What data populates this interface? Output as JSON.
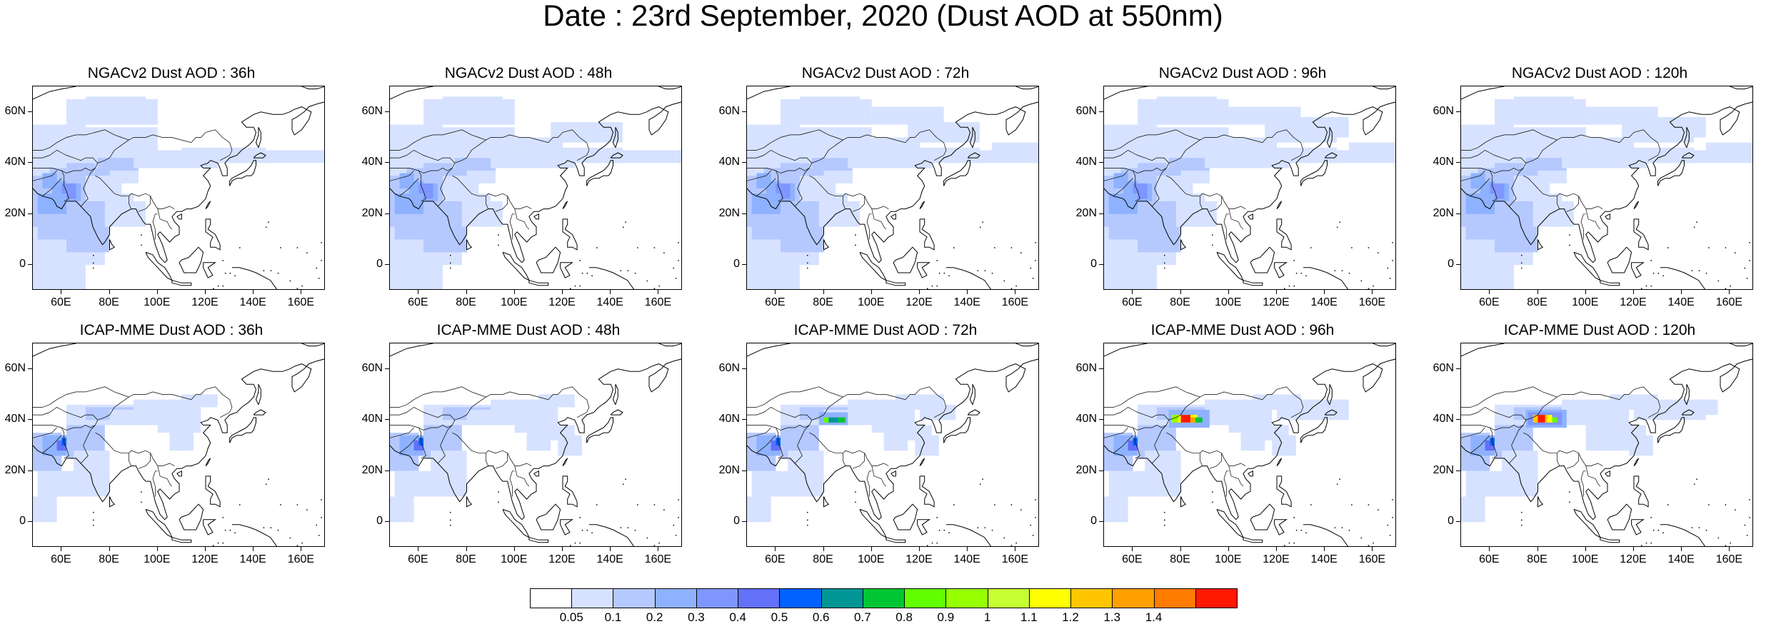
{
  "figure_title": "Date : 23rd September, 2020 (Dust AOD at 550nm)",
  "lat_ticks": [
    "60N",
    "40N",
    "20N",
    "0"
  ],
  "lon_ticks": [
    "60E",
    "80E",
    "100E",
    "120E",
    "140E",
    "160E"
  ],
  "panels": [
    {
      "title": "NGACv2 Dust AOD : 36h",
      "row": 0,
      "col": 0
    },
    {
      "title": "NGACv2 Dust AOD : 48h",
      "row": 0,
      "col": 1
    },
    {
      "title": "NGACv2 Dust AOD : 72h",
      "row": 0,
      "col": 2
    },
    {
      "title": "NGACv2 Dust AOD : 96h",
      "row": 0,
      "col": 3
    },
    {
      "title": "NGACv2 Dust AOD : 120h",
      "row": 0,
      "col": 4
    },
    {
      "title": "ICAP-MME Dust AOD : 36h",
      "row": 1,
      "col": 0
    },
    {
      "title": "ICAP-MME Dust AOD : 48h",
      "row": 1,
      "col": 1
    },
    {
      "title": "ICAP-MME Dust AOD : 72h",
      "row": 1,
      "col": 2
    },
    {
      "title": "ICAP-MME Dust AOD : 96h",
      "row": 1,
      "col": 3
    },
    {
      "title": "ICAP-MME Dust AOD : 120h",
      "row": 1,
      "col": 4
    }
  ],
  "colorbar": {
    "labels": [
      "0.05",
      "0.1",
      "0.2",
      "0.3",
      "0.4",
      "0.5",
      "0.6",
      "0.7",
      "0.8",
      "0.9",
      "1",
      "1.1",
      "1.2",
      "1.3",
      "1.4"
    ],
    "colors": [
      "#ffffff",
      "#d6e2ff",
      "#b5c9ff",
      "#8eb2ff",
      "#7f96ff",
      "#6370f8",
      "#0063ff",
      "#009696",
      "#00c633",
      "#63ff00",
      "#96ff00",
      "#c6ff33",
      "#ffff00",
      "#ffc600",
      "#ffa000",
      "#ff7c00",
      "#ff1900"
    ]
  }
}
